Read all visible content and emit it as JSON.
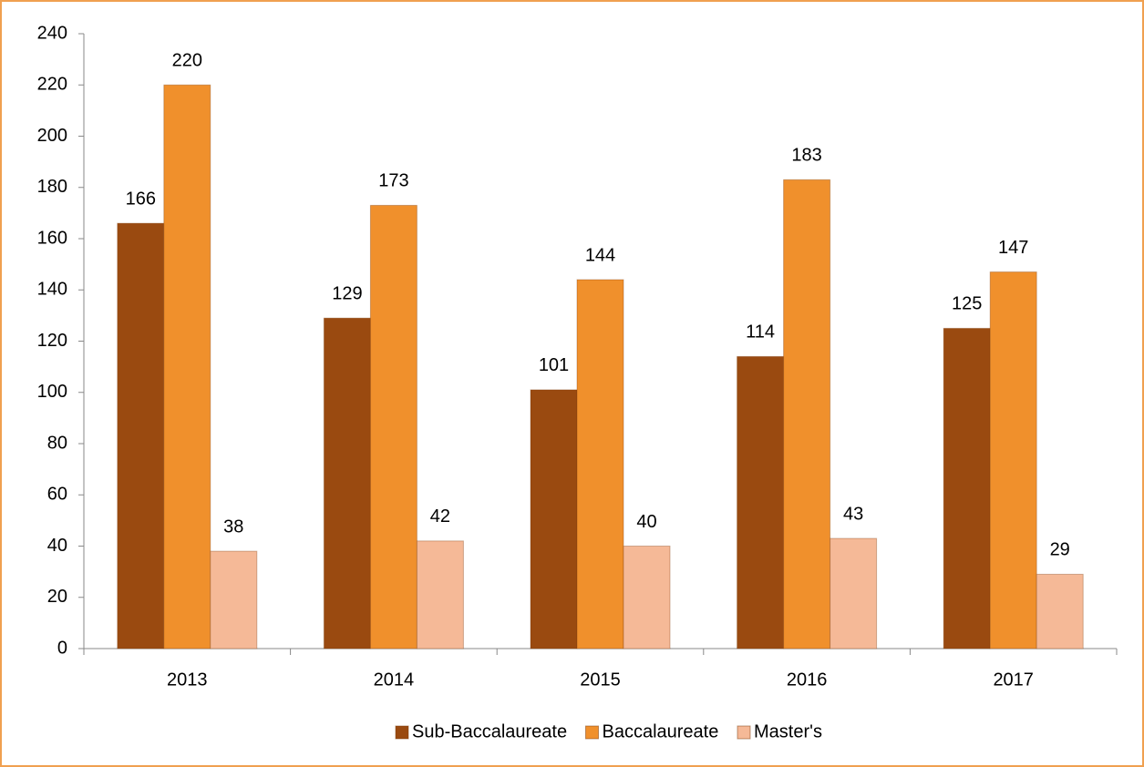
{
  "chart_data": {
    "type": "bar",
    "categories": [
      "2013",
      "2014",
      "2015",
      "2016",
      "2017"
    ],
    "series": [
      {
        "name": "Sub-Baccalaureate",
        "color": "#9a4a10",
        "values": [
          166,
          129,
          101,
          114,
          125
        ]
      },
      {
        "name": "Baccalaureate",
        "color": "#f0902c",
        "values": [
          220,
          173,
          144,
          183,
          147
        ]
      },
      {
        "name": "Master's",
        "color": "#f5b997",
        "values": [
          38,
          42,
          40,
          43,
          29
        ]
      }
    ],
    "ylim": [
      0,
      240
    ],
    "yticks": [
      0,
      20,
      40,
      60,
      80,
      100,
      120,
      140,
      160,
      180,
      200,
      220,
      240
    ],
    "grid": false,
    "legend": "bottom"
  }
}
